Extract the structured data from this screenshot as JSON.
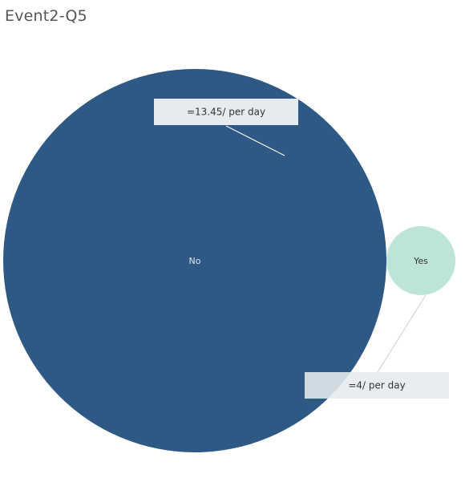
{
  "chart_data": {
    "type": "bubble",
    "title": "Event2-Q5",
    "categories": [
      "No",
      "Yes"
    ],
    "values": [
      13.45,
      4
    ],
    "annotations": [
      "=13.45/ per day",
      "=4/ per day"
    ],
    "colors": [
      "#2e5984",
      "#bce4d8"
    ],
    "label_colors": [
      "#dfe7ef",
      "#333333"
    ],
    "annotation_bg": "#e6ebef",
    "leader_colors": [
      "#ffffff",
      "#cfcfcf"
    ]
  }
}
